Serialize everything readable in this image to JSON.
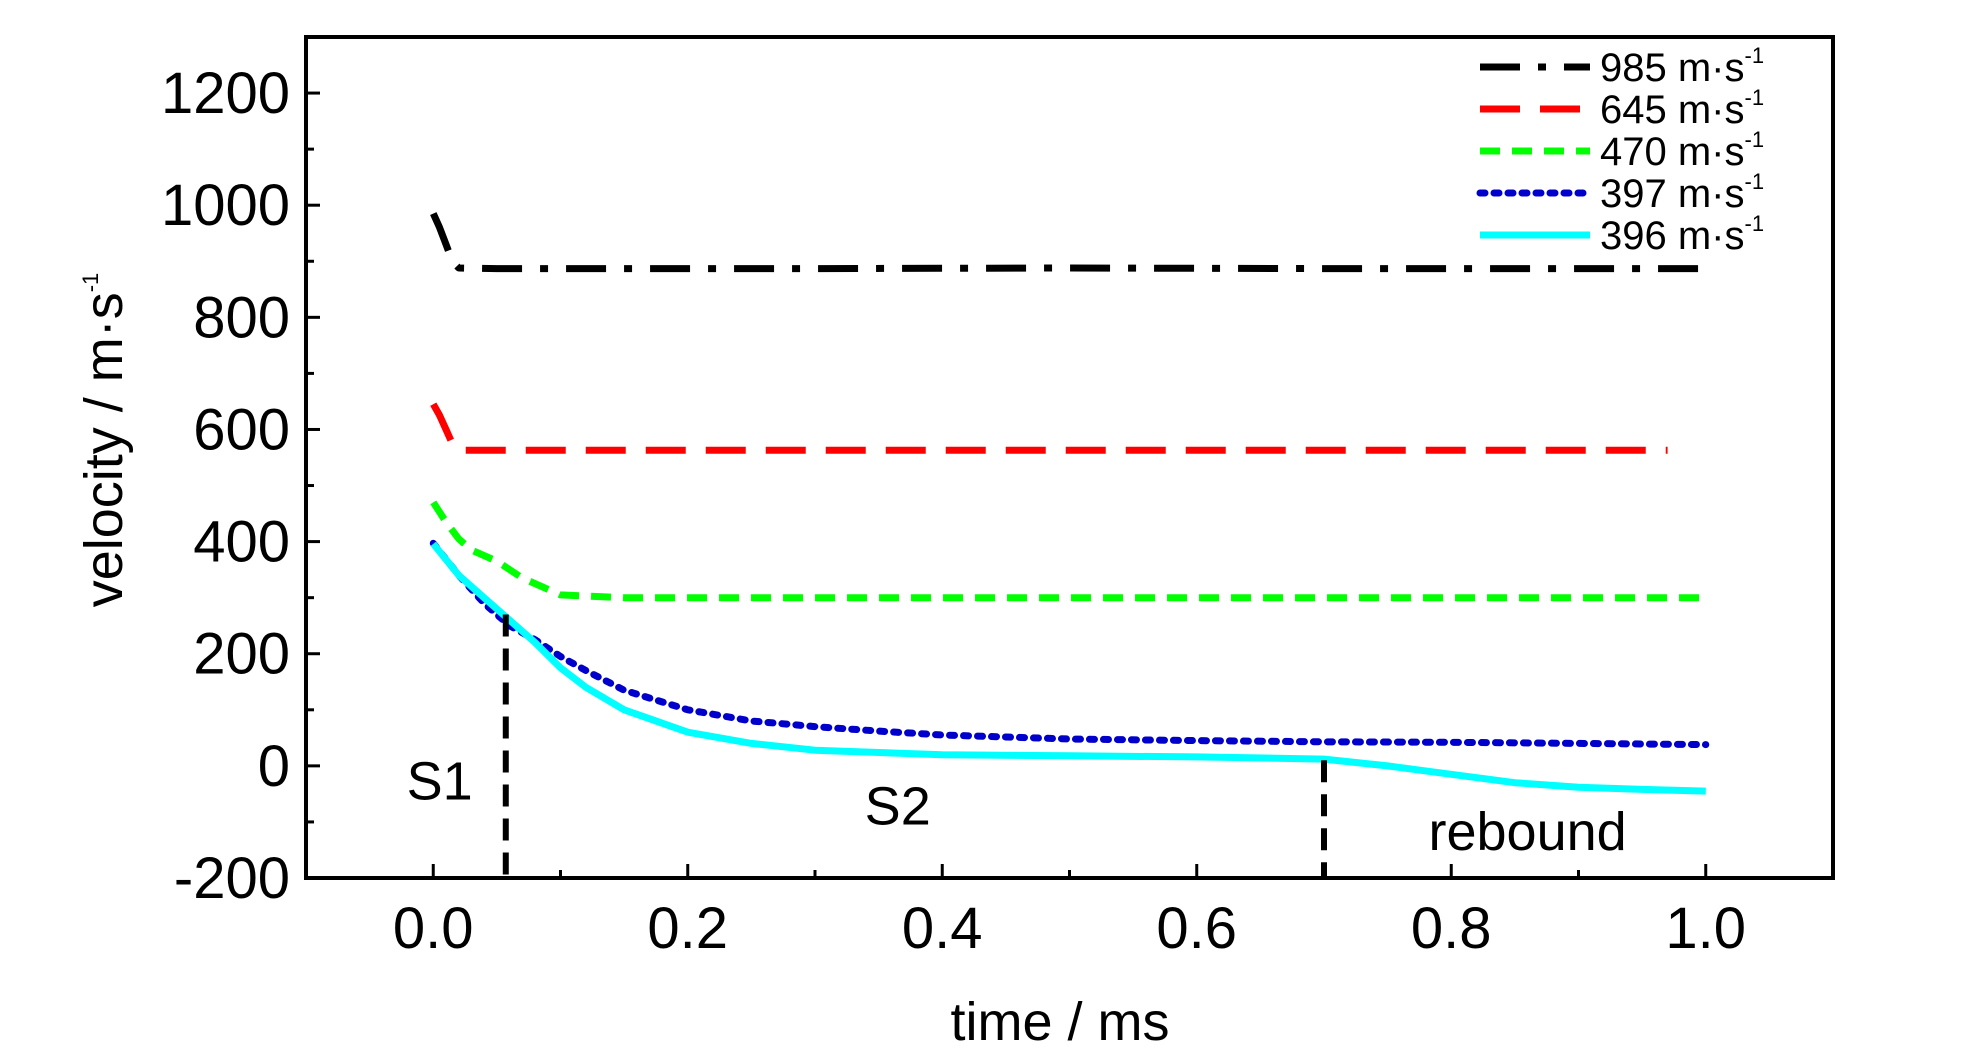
{
  "chart_data": {
    "type": "line",
    "xlabel": "time / ms",
    "ylabel_main": "velocity / m·s",
    "ylabel_sup": "-1",
    "xlim": [
      -0.1,
      1.1
    ],
    "ylim": [
      -200,
      1300
    ],
    "xticks": [
      0.0,
      0.2,
      0.4,
      0.6,
      0.8,
      1.0
    ],
    "xtick_labels": [
      "0.0",
      "0.2",
      "0.4",
      "0.6",
      "0.8",
      "1.0"
    ],
    "yticks": [
      -200,
      0,
      200,
      400,
      600,
      800,
      1000,
      1200
    ],
    "ytick_labels": [
      "-200",
      "0",
      "200",
      "400",
      "600",
      "800",
      "1000",
      "1200"
    ],
    "grid": false,
    "legend_position": "top-right",
    "series": [
      {
        "name": "985 m·s",
        "name_sup": "-1",
        "color": "#000000",
        "dash": "dashdot",
        "x": [
          0.0,
          0.005,
          0.01,
          0.015,
          0.02,
          0.05,
          0.1,
          0.3,
          0.5,
          0.7,
          0.9,
          1.0
        ],
        "y": [
          985,
          960,
          930,
          900,
          888,
          887,
          887,
          887,
          888,
          887,
          887,
          887
        ]
      },
      {
        "name": "645 m·s",
        "name_sup": "-1",
        "color": "#ff0000",
        "dash": "longdash",
        "x": [
          0.0,
          0.005,
          0.01,
          0.015,
          0.02,
          0.05,
          0.2,
          0.4,
          0.6,
          0.8,
          0.97
        ],
        "y": [
          645,
          625,
          600,
          575,
          563,
          563,
          563,
          563,
          563,
          563,
          563
        ]
      },
      {
        "name": "470 m·s",
        "name_sup": "-1",
        "color": "#00ff00",
        "dash": "dash",
        "x": [
          0.0,
          0.01,
          0.02,
          0.03,
          0.05,
          0.07,
          0.1,
          0.15,
          0.3,
          0.5,
          0.7,
          0.9,
          1.0
        ],
        "y": [
          470,
          435,
          405,
          385,
          365,
          335,
          305,
          300,
          300,
          300,
          300,
          300,
          300
        ]
      },
      {
        "name": "397 m·s",
        "name_sup": "-1",
        "color": "#0000cc",
        "dash": "dot",
        "x": [
          0.0,
          0.02,
          0.04,
          0.06,
          0.08,
          0.1,
          0.12,
          0.15,
          0.2,
          0.25,
          0.3,
          0.35,
          0.4,
          0.5,
          0.6,
          0.7,
          0.8,
          0.9,
          1.0
        ],
        "y": [
          397,
          340,
          290,
          250,
          225,
          195,
          170,
          135,
          100,
          80,
          70,
          62,
          55,
          48,
          45,
          43,
          42,
          40,
          38
        ]
      },
      {
        "name": "396 m·s",
        "name_sup": "-1",
        "color": "#00ffff",
        "dash": "solid",
        "x": [
          0.0,
          0.02,
          0.04,
          0.06,
          0.08,
          0.1,
          0.12,
          0.15,
          0.2,
          0.25,
          0.3,
          0.4,
          0.5,
          0.6,
          0.7,
          0.75,
          0.8,
          0.85,
          0.9,
          0.95,
          1.0
        ],
        "y": [
          396,
          340,
          300,
          260,
          220,
          175,
          140,
          100,
          60,
          40,
          28,
          20,
          18,
          16,
          12,
          0,
          -15,
          -30,
          -38,
          -42,
          -45
        ]
      }
    ],
    "separators": [
      {
        "x": 0.057,
        "y_top": 270
      },
      {
        "x": 0.7,
        "y_top": 10
      }
    ],
    "annotations": [
      {
        "text": "S1",
        "x": 0.005,
        "y": -60
      },
      {
        "text": "S2",
        "x": 0.365,
        "y": -105
      },
      {
        "text": "rebound",
        "x": 0.86,
        "y": -150
      }
    ]
  }
}
